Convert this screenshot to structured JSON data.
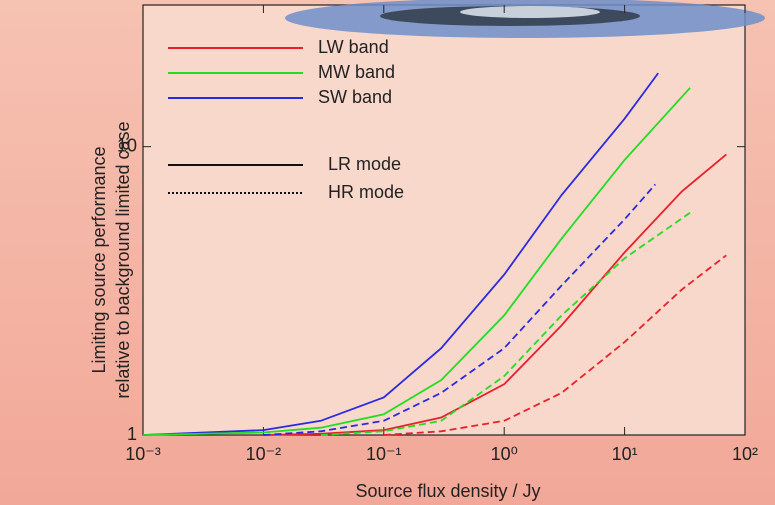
{
  "chart_data": {
    "type": "line",
    "x_label": "Source flux density / Jy",
    "y_label": [
      "Limiting source performance",
      "relative to background limited case"
    ],
    "xscale": "log",
    "yscale": "log",
    "xlim": [
      0.001,
      100
    ],
    "ylim": [
      1,
      31
    ],
    "xticks": [
      {
        "value": 0.001,
        "label": "10⁻³"
      },
      {
        "value": 0.01,
        "label": "10⁻²"
      },
      {
        "value": 0.1,
        "label": "10⁻¹"
      },
      {
        "value": 1,
        "label": "10⁰"
      },
      {
        "value": 10,
        "label": "10¹"
      },
      {
        "value": 100,
        "label": "10²"
      }
    ],
    "yticks": [
      1,
      10
    ],
    "legend": {
      "position": "upper left",
      "bands": [
        {
          "name": "LW band",
          "color": "#e8202a"
        },
        {
          "name": "MW band",
          "color": "#22dd22"
        },
        {
          "name": "SW band",
          "color": "#2a2ae0"
        }
      ],
      "modes": [
        {
          "name": "LR mode",
          "dashed": false
        },
        {
          "name": "HR mode",
          "dashed": true
        }
      ]
    },
    "series": [
      {
        "color": "#2a2ae0",
        "dashed": false,
        "x": [
          0.001,
          0.01,
          0.03,
          0.1,
          0.3,
          1,
          3,
          10,
          19
        ],
        "values": [
          1,
          1.04,
          1.12,
          1.35,
          2.0,
          3.6,
          6.8,
          12.5,
          18
        ]
      },
      {
        "color": "#22dd22",
        "dashed": false,
        "x": [
          0.001,
          0.01,
          0.03,
          0.1,
          0.3,
          1,
          3,
          10,
          35
        ],
        "values": [
          1,
          1.02,
          1.06,
          1.18,
          1.55,
          2.6,
          4.8,
          9,
          16
        ]
      },
      {
        "color": "#e8202a",
        "dashed": false,
        "x": [
          0.01,
          0.03,
          0.1,
          0.3,
          1,
          3,
          10,
          30,
          70
        ],
        "values": [
          1,
          1.01,
          1.04,
          1.15,
          1.5,
          2.4,
          4.3,
          7,
          9.4
        ]
      },
      {
        "color": "#2a2ae0",
        "dashed": true,
        "x": [
          0.01,
          0.03,
          0.1,
          0.3,
          1,
          3,
          10,
          18
        ],
        "values": [
          1,
          1.03,
          1.12,
          1.4,
          2.0,
          3.3,
          5.6,
          7.4
        ]
      },
      {
        "color": "#22dd22",
        "dashed": true,
        "x": [
          0.03,
          0.1,
          0.3,
          1,
          3,
          10,
          35
        ],
        "values": [
          1,
          1.03,
          1.12,
          1.6,
          2.6,
          4.1,
          5.9
        ]
      },
      {
        "color": "#e8202a",
        "dashed": true,
        "x": [
          0.1,
          0.3,
          1,
          3,
          10,
          30,
          70
        ],
        "values": [
          1,
          1.03,
          1.12,
          1.4,
          2.1,
          3.2,
          4.2
        ]
      }
    ]
  }
}
